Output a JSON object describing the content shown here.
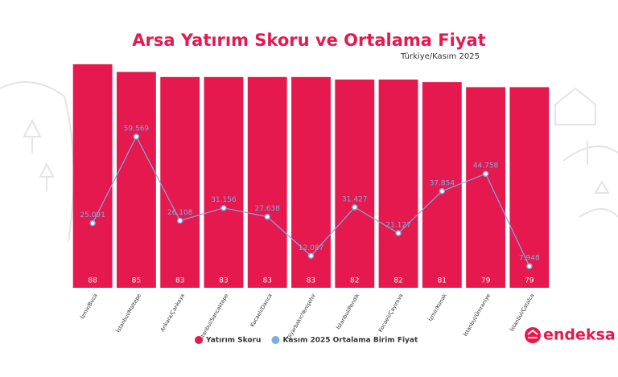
{
  "chart_data": {
    "type": "bar",
    "title": "Arsa Yatırım Skoru ve Ortalama Fiyat",
    "subtitle": "Türkiye/Kasım 2025",
    "categories": [
      "İzmir/Buca",
      "İstanbul/Maltepe",
      "Ankara/Çankaya",
      "İstanbul/Sancaktepe",
      "Kocaeli/Darıca",
      "Diyarbakır/Yenişehir",
      "İstanbul/Pendik",
      "Kocaeli/Çayırova",
      "İzmir/Konak",
      "İstanbul/Ümraniye",
      "İstanbul/Çatalca"
    ],
    "series": [
      {
        "name": "Yatırım Skoru",
        "type": "bar",
        "color": "#e5194d",
        "values": [
          88,
          85,
          83,
          83,
          83,
          83,
          82,
          82,
          81,
          79,
          79
        ]
      },
      {
        "name": "Kasım 2025 Ortalama Birim Fiyat",
        "type": "line",
        "color": "#7aaee0",
        "values": [
          25091,
          59569,
          26108,
          31156,
          27638,
          12087,
          31427,
          21127,
          37854,
          44758,
          7948
        ],
        "value_labels": [
          "25.091",
          "59.569",
          "26.108",
          "31.156",
          "27.638",
          "12.087",
          "31.427",
          "21.127",
          "37.854",
          "44.758",
          "7.948"
        ]
      }
    ]
  },
  "logo": "endeksa"
}
